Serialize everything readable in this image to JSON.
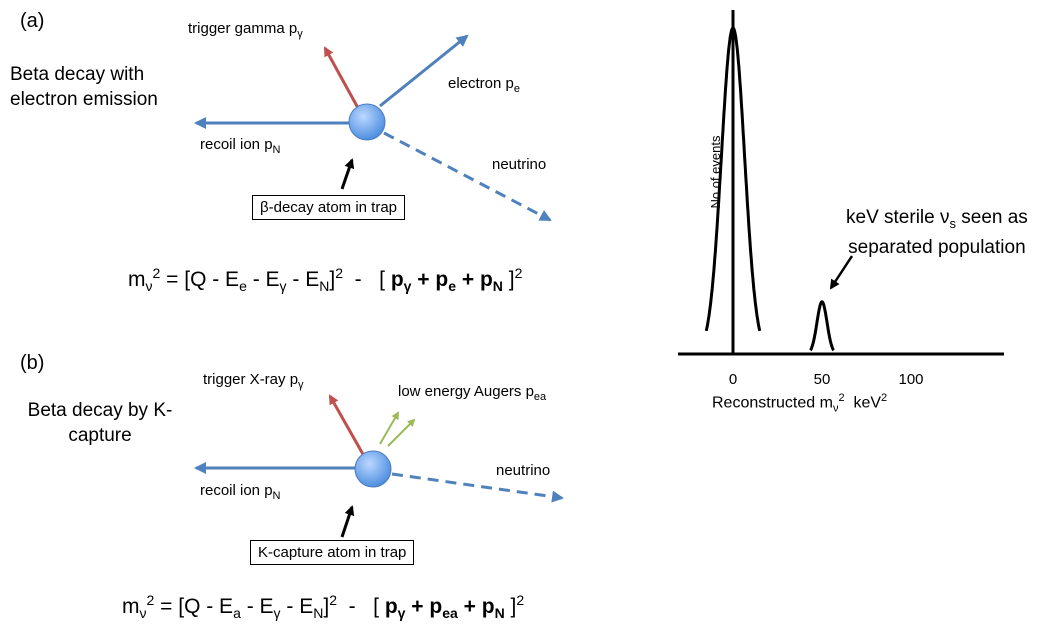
{
  "panel_a": {
    "label": "(a)",
    "description": "Beta decay with electron emission",
    "trigger": "trigger gamma p",
    "trigger_sub": "γ",
    "electron": "electron p",
    "electron_sub": "e",
    "recoil": "recoil ion p",
    "recoil_sub": "N",
    "neutrino": "neutrino",
    "atom_box": "β-decay atom in trap",
    "equation": "[Q - E_e - E_γ - E_N]^2 - [ p_γ + p_e + p_N ]^2"
  },
  "panel_b": {
    "label": "(b)",
    "description": "Beta decay by K-capture",
    "trigger": "trigger X-ray p",
    "trigger_sub": "γ",
    "augers": "low energy Augers p",
    "augers_sub": "ea",
    "recoil": "recoil ion p",
    "recoil_sub": "N",
    "neutrino": "neutrino",
    "atom_box": "K-capture atom in trap",
    "equation": "[Q - E_a - E_γ - E_N]^2 - [ p_γ + p_ea + p_N ]^2"
  },
  "colors": {
    "trigger_arrow": "#c0504d",
    "blue_arrow": "#4f81bd",
    "auger_arrow": "#9bbb59",
    "atom": "#6fa8f0"
  },
  "chart_data": {
    "type": "line",
    "ylabel": "No of events",
    "xlabel": "Reconstructed m_ν^2 keV^2",
    "xticks": [
      0,
      50,
      100
    ],
    "xlim": [
      -30,
      150
    ],
    "series": [
      {
        "peak_center": 0,
        "relative_height": 1.0
      },
      {
        "peak_center": 50,
        "relative_height": 0.16
      }
    ],
    "annotation": "keV sterile ν_s seen as separated population"
  }
}
